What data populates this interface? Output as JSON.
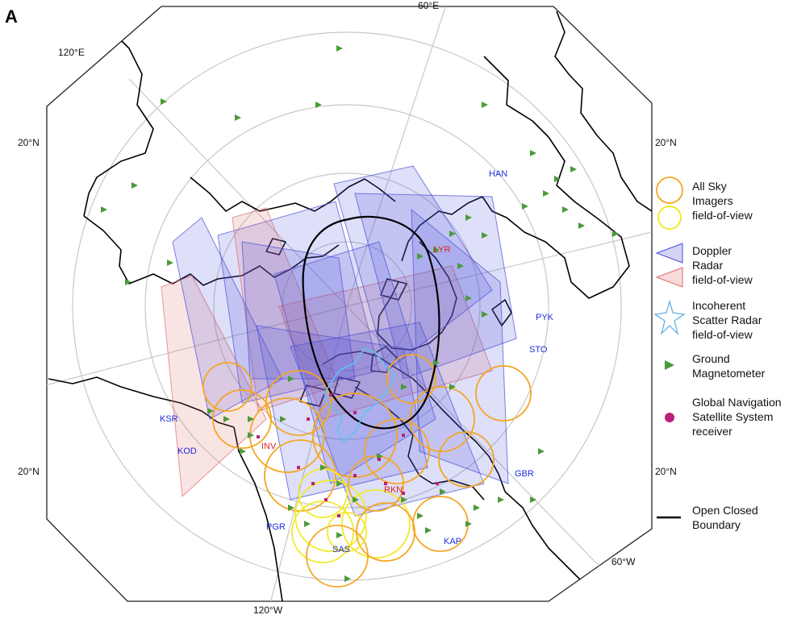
{
  "panel_label": "A",
  "coordinates": {
    "top": "60°E",
    "upper_left": "120°E",
    "left_upper": "20°N",
    "right_upper": "20°N",
    "left_lower": "20°N",
    "right_lower": "20°N",
    "bottom": "120°W",
    "lower_right": "60°W"
  },
  "sites": [
    {
      "code": "HAN",
      "color": "#1f2de0"
    },
    {
      "code": "LYR",
      "color": "#e0201f"
    },
    {
      "code": "PYK",
      "color": "#1f2de0"
    },
    {
      "code": "STO",
      "color": "#1f2de0"
    },
    {
      "code": "KSR",
      "color": "#1f2de0"
    },
    {
      "code": "KOD",
      "color": "#1f2de0"
    },
    {
      "code": "INV",
      "color": "#e0201f"
    },
    {
      "code": "GBR",
      "color": "#1f2de0"
    },
    {
      "code": "RKN",
      "color": "#e0201f"
    },
    {
      "code": "PGR",
      "color": "#1f2de0"
    },
    {
      "code": "SAS",
      "color": "#1f2de0"
    },
    {
      "code": "KAP",
      "color": "#1f2de0"
    }
  ],
  "legend": {
    "asi": {
      "lines": [
        "All Sky",
        "Imagers",
        "field-of-view"
      ],
      "colors": [
        "#f5a623",
        "#f2ea2a"
      ]
    },
    "doppler": {
      "lines": [
        "Doppler",
        "Radar",
        "field-of-view"
      ],
      "colors": [
        "#4a4fd8",
        "#e06b6b"
      ]
    },
    "isr": {
      "lines": [
        "Incoherent",
        "Scatter Radar",
        "field-of-view"
      ],
      "color": "#6fb7e8"
    },
    "magnetometer": {
      "lines": [
        "Ground",
        "Magnetometer"
      ],
      "color": "#4a9a3a"
    },
    "gnss": {
      "lines": [
        "Global Navigation",
        "Satellite System",
        "receiver"
      ],
      "color": "#b8207a"
    },
    "boundary": {
      "lines": [
        "Open Closed",
        "Boundary"
      ],
      "color": "#000000"
    }
  }
}
